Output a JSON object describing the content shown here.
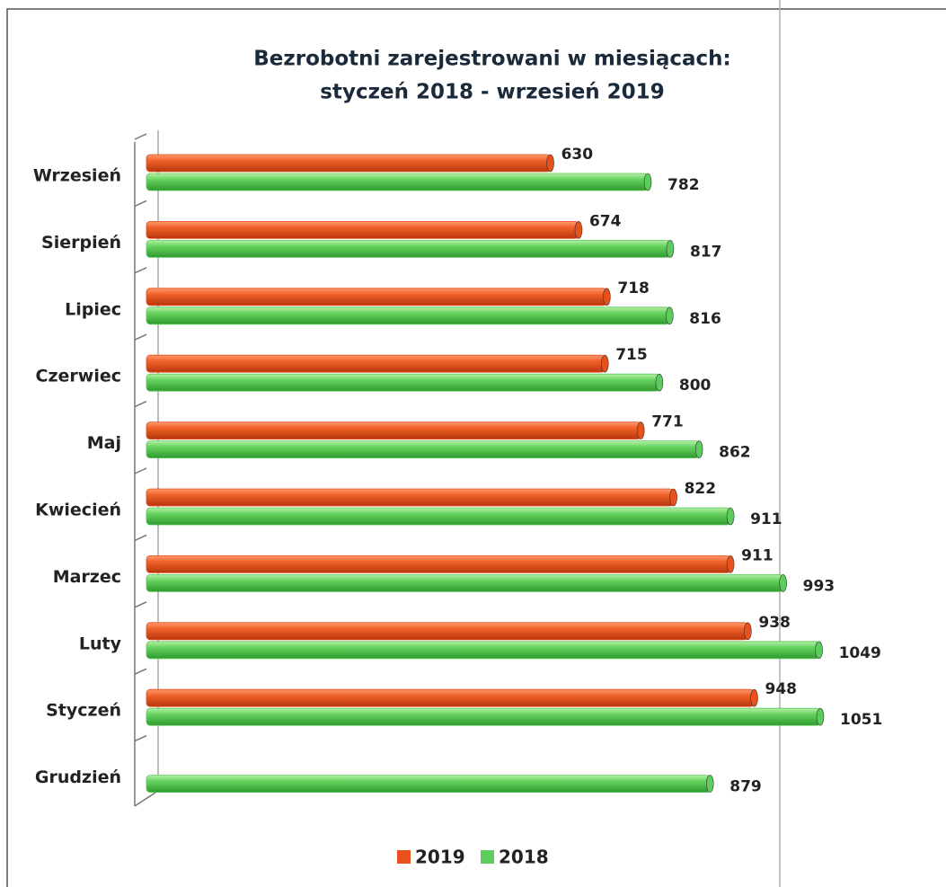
{
  "chart_data": {
    "type": "bar",
    "orientation": "horizontal",
    "title": [
      "Bezrobotni zarejestrowani w miesiącach:",
      "styczeń 2018 - wrzesień 2019"
    ],
    "categories": [
      "Wrzesień",
      "Sierpień",
      "Lipiec",
      "Czerwiec",
      "Maj",
      "Kwiecień",
      "Marzec",
      "Luty",
      "Styczeń",
      "Grudzień"
    ],
    "series": [
      {
        "name": "2019",
        "color": "#e8501c",
        "values": [
          630,
          674,
          718,
          715,
          771,
          822,
          911,
          938,
          948,
          null
        ]
      },
      {
        "name": "2018",
        "color": "#5ccc5c",
        "values": [
          782,
          817,
          816,
          800,
          862,
          911,
          993,
          1049,
          1051,
          879
        ]
      }
    ],
    "legend": "bottom"
  }
}
